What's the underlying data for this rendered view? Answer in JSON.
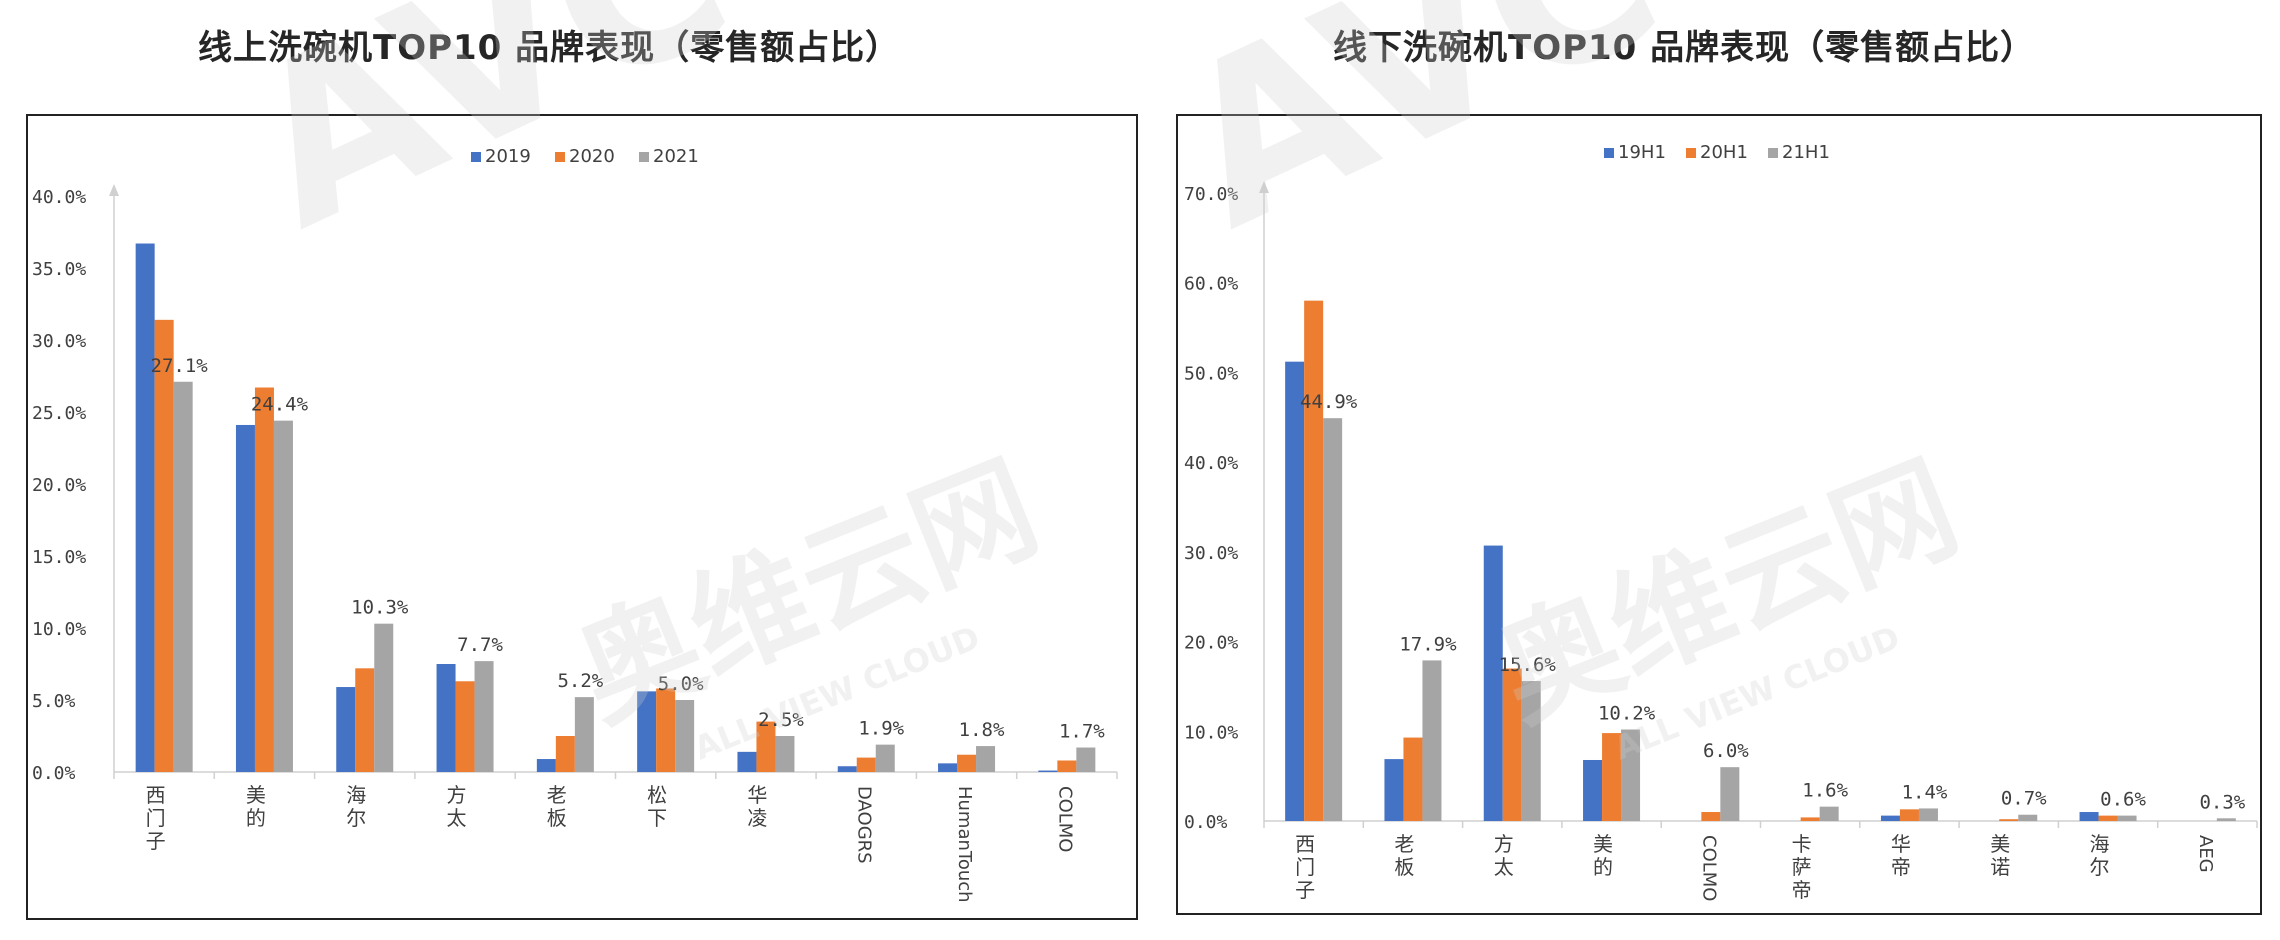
{
  "chart_data": [
    {
      "type": "bar",
      "title": "线上洗碗机TOP10 品牌表现（零售额占比）",
      "categories": [
        "西门子",
        "美的",
        "海尔",
        "方太",
        "老板",
        "松下",
        "华凌",
        "DAOGRS",
        "HumanTouch",
        "COLMO"
      ],
      "category_vertical": [
        false,
        false,
        false,
        false,
        false,
        false,
        false,
        true,
        true,
        true
      ],
      "series": [
        {
          "name": "2019",
          "color": "#4472c4",
          "values": [
            36.7,
            24.1,
            5.9,
            7.5,
            0.9,
            5.6,
            1.4,
            0.4,
            0.6,
            0.1
          ]
        },
        {
          "name": "2020",
          "color": "#ed7d31",
          "values": [
            31.4,
            26.7,
            7.2,
            6.3,
            2.5,
            5.8,
            3.5,
            1.0,
            1.2,
            0.8
          ]
        },
        {
          "name": "2021",
          "color": "#a5a5a5",
          "values": [
            27.1,
            24.4,
            10.3,
            7.7,
            5.2,
            5.0,
            2.5,
            1.9,
            1.8,
            1.7
          ]
        }
      ],
      "data_labels": [
        "27.1%",
        "24.4%",
        "10.3%",
        "7.7%",
        "5.2%",
        "5.0%",
        "2.5%",
        "1.9%",
        "1.8%",
        "1.7%"
      ],
      "ylim": [
        0,
        40
      ],
      "yticks": [
        0,
        5,
        10,
        15,
        20,
        25,
        30,
        35,
        40
      ],
      "ytick_labels": [
        "0.0%",
        "5.0%",
        "10.0%",
        "15.0%",
        "20.0%",
        "25.0%",
        "30.0%",
        "35.0%",
        "40.0%"
      ],
      "xlabel": "",
      "ylabel": "",
      "grid": false,
      "legend": "top-center"
    },
    {
      "type": "bar",
      "title": "线下洗碗机TOP10 品牌表现（零售额占比）",
      "categories": [
        "西门子",
        "老板",
        "方太",
        "美的",
        "COLMO",
        "卡萨帝",
        "华帝",
        "美诺",
        "海尔",
        "AEG"
      ],
      "category_vertical": [
        false,
        false,
        false,
        false,
        true,
        false,
        false,
        false,
        false,
        true
      ],
      "series": [
        {
          "name": "19H1",
          "color": "#4472c4",
          "values": [
            51.2,
            6.9,
            30.7,
            6.8,
            0.0,
            0.0,
            0.6,
            0.0,
            1.0,
            0.0
          ]
        },
        {
          "name": "20H1",
          "color": "#ed7d31",
          "values": [
            58.0,
            9.3,
            17.0,
            9.8,
            1.0,
            0.4,
            1.3,
            0.2,
            0.6,
            0.0
          ]
        },
        {
          "name": "21H1",
          "color": "#a5a5a5",
          "values": [
            44.9,
            17.9,
            15.6,
            10.2,
            6.0,
            1.6,
            1.4,
            0.7,
            0.6,
            0.3
          ]
        }
      ],
      "data_labels": [
        "44.9%",
        "17.9%",
        "15.6%",
        "10.2%",
        "6.0%",
        "1.6%",
        "1.4%",
        "0.7%",
        "0.6%",
        "0.3%"
      ],
      "ylim": [
        0,
        70
      ],
      "yticks": [
        0,
        10,
        20,
        30,
        40,
        50,
        60,
        70
      ],
      "ytick_labels": [
        "0.0%",
        "10.0%",
        "20.0%",
        "30.0%",
        "40.0%",
        "50.0%",
        "60.0%",
        "70.0%"
      ],
      "xlabel": "",
      "ylabel": "",
      "grid": false,
      "legend": "top-center"
    }
  ],
  "watermark": {
    "brand": "AVC",
    "cn": "奥维云网",
    "en": "ALL VIEW CLOUD"
  }
}
